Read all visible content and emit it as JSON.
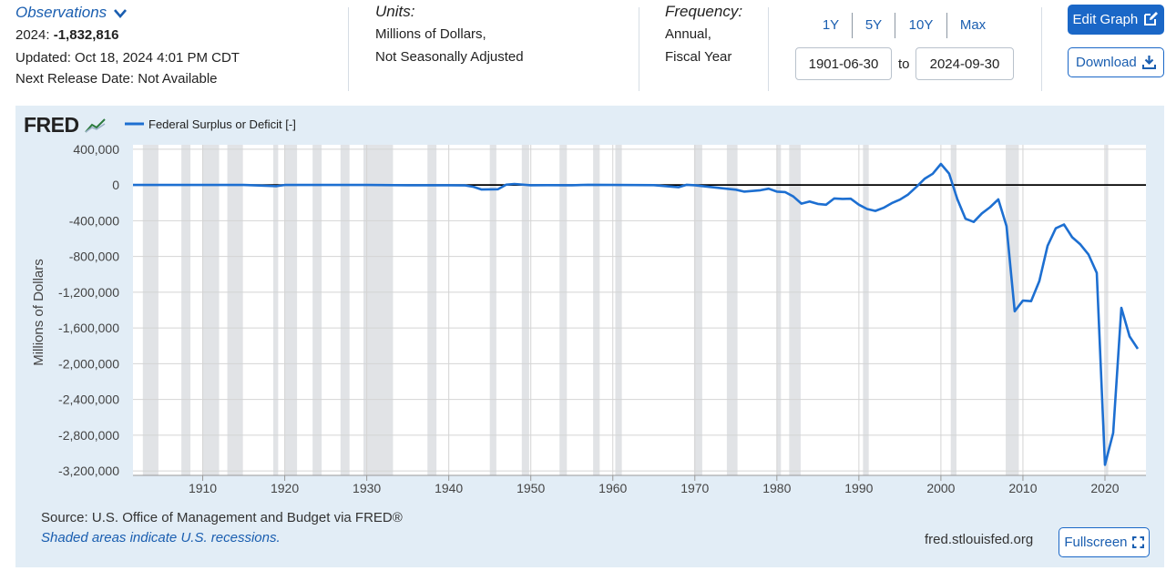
{
  "header": {
    "observations_label": "Observations",
    "observation_year": "2024:",
    "observation_value": "-1,832,816",
    "updated": "Updated: Oct 18, 2024 4:01 PM CDT",
    "next_release": "Next Release Date: Not Available",
    "units_label": "Units:",
    "units_line1": "Millions of Dollars,",
    "units_line2": "Not Seasonally Adjusted",
    "frequency_label": "Frequency:",
    "frequency_line1": "Annual,",
    "frequency_line2": "Fiscal Year"
  },
  "controls": {
    "ranges": [
      "1Y",
      "5Y",
      "10Y",
      "Max"
    ],
    "start_date": "1901-06-30",
    "to_label": "to",
    "end_date": "2024-09-30",
    "edit_graph": "Edit Graph",
    "download": "Download",
    "fullscreen": "Fullscreen"
  },
  "brand": "FRED",
  "footer": {
    "source": "Source: U.S. Office of Management and Budget via FRED®",
    "shaded_note": "Shaded areas indicate U.S. recessions.",
    "site": "fred.stlouisfed.org"
  },
  "colors": {
    "series": "#1d6fd1",
    "recession": "#e1e3e6",
    "panel": "#e2edf6",
    "accent": "#1a67c7"
  },
  "chart_data": {
    "type": "line",
    "title": "",
    "xlabel": "",
    "ylabel": "Millions of Dollars",
    "legend": "top-left",
    "grid": true,
    "xlim": [
      1901.5,
      2025
    ],
    "ylim": [
      -3250000,
      450000
    ],
    "x_ticks": [
      1910,
      1920,
      1930,
      1940,
      1950,
      1960,
      1970,
      1980,
      1990,
      2000,
      2010,
      2020
    ],
    "y_ticks": [
      400000,
      0,
      -400000,
      -800000,
      -1200000,
      -1600000,
      -2000000,
      -2400000,
      -2800000,
      -3200000
    ],
    "y_tick_labels": [
      "400,000",
      "0",
      "-400,000",
      "-800,000",
      "-1,200,000",
      "-1,600,000",
      "-2,000,000",
      "-2,400,000",
      "-2,800,000",
      "-3,200,000"
    ],
    "recessions": [
      [
        1902.7,
        1904.6
      ],
      [
        1907.4,
        1908.5
      ],
      [
        1910.0,
        1912.0
      ],
      [
        1913.0,
        1914.9
      ],
      [
        1918.6,
        1919.2
      ],
      [
        1920.0,
        1921.5
      ],
      [
        1923.4,
        1924.5
      ],
      [
        1926.8,
        1927.9
      ],
      [
        1929.6,
        1933.2
      ],
      [
        1937.4,
        1938.5
      ],
      [
        1945.0,
        1945.8
      ],
      [
        1948.9,
        1949.8
      ],
      [
        1953.5,
        1954.4
      ],
      [
        1957.6,
        1958.4
      ],
      [
        1960.3,
        1961.1
      ],
      [
        1969.9,
        1970.9
      ],
      [
        1973.9,
        1975.2
      ],
      [
        1980.0,
        1980.5
      ],
      [
        1981.5,
        1982.9
      ],
      [
        1990.5,
        1991.2
      ],
      [
        2001.2,
        2001.9
      ],
      [
        2007.9,
        2009.5
      ],
      [
        2020.1,
        2020.4
      ]
    ],
    "series": [
      {
        "name": "Federal Surplus or Deficit [-]",
        "color": "#1d6fd1",
        "x": [
          1901,
          1905,
          1910,
          1915,
          1918,
          1919,
          1920,
          1925,
          1930,
          1935,
          1940,
          1942,
          1943,
          1944,
          1945,
          1946,
          1947,
          1948,
          1950,
          1952,
          1955,
          1957,
          1960,
          1965,
          1968,
          1969,
          1970,
          1972,
          1975,
          1976,
          1978,
          1979,
          1980,
          1981,
          1982,
          1983,
          1984,
          1985,
          1986,
          1987,
          1988,
          1989,
          1990,
          1991,
          1992,
          1993,
          1994,
          1995,
          1996,
          1997,
          1998,
          1999,
          2000,
          2001,
          2002,
          2003,
          2004,
          2005,
          2006,
          2007,
          2008,
          2009,
          2010,
          2011,
          2012,
          2013,
          2014,
          2015,
          2016,
          2017,
          2018,
          2019,
          2020,
          2021,
          2022,
          2023,
          2024
        ],
        "y": [
          0,
          0,
          0,
          0,
          -10000,
          -13000,
          0,
          0,
          0,
          -3000,
          -3000,
          -5000,
          -20000,
          -50000,
          -48000,
          -47000,
          4000,
          12000,
          -3000,
          -2000,
          -3000,
          3000,
          0,
          -1500,
          -25000,
          3000,
          -3000,
          -23000,
          -53000,
          -74000,
          -59000,
          -41000,
          -74000,
          -79000,
          -128000,
          -208000,
          -185000,
          -212000,
          -221000,
          -150000,
          -155000,
          -153000,
          -221000,
          -269000,
          -290000,
          -255000,
          -203000,
          -164000,
          -107000,
          -22000,
          69000,
          126000,
          236000,
          128000,
          -158000,
          -378000,
          -413000,
          -318000,
          -248000,
          -161000,
          -459000,
          -1413000,
          -1294000,
          -1300000,
          -1077000,
          -680000,
          -485000,
          -442000,
          -585000,
          -665000,
          -779000,
          -984000,
          -3132000,
          -2775000,
          -1375000,
          -1695000,
          -1833000
        ]
      }
    ]
  }
}
